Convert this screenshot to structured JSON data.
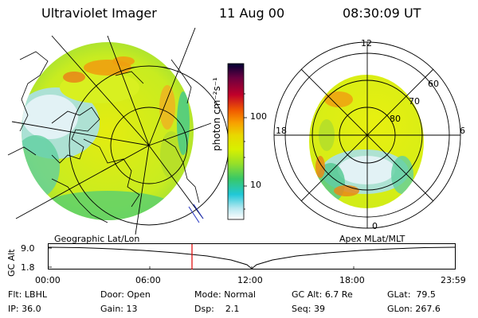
{
  "header": {
    "instrument": "Ultraviolet Imager",
    "date": "11 Aug 00",
    "time": "08:30:09 UT"
  },
  "colorbar": {
    "unit_label": "photon cm⁻²s⁻¹",
    "ticks": [
      "100",
      "10"
    ],
    "colors": [
      "#000033",
      "#6a0040",
      "#c0002a",
      "#f05a00",
      "#f8a000",
      "#e8d800",
      "#d8f000",
      "#98e028",
      "#38c868",
      "#20c8d8",
      "#b8e8f0",
      "#ffffff"
    ]
  },
  "left_map": {
    "label": "Geographic Lat/Lon"
  },
  "right_map": {
    "label": "Apex  MLat/MLT",
    "mlt_labels": {
      "top": "12",
      "left": "18",
      "right": "6",
      "bottom": "0"
    },
    "lat_labels": [
      "60",
      "70",
      "80"
    ]
  },
  "altitude_panel": {
    "ylabel": "GC Alt",
    "yticks": [
      "9.0",
      "1.8"
    ],
    "xticks": [
      "00:00",
      "06:00",
      "12:00",
      "18:00",
      "23:59"
    ],
    "marker_time": "08:30",
    "marker_color": "#e00000"
  },
  "status": {
    "row1": [
      {
        "key": "Flt:",
        "value": "LBHL"
      },
      {
        "key": "Door:",
        "value": "Open"
      },
      {
        "key": "Mode:",
        "value": "Normal"
      },
      {
        "key": "GC Alt:",
        "value": "6.7 Re"
      },
      {
        "key": "GLat:",
        "value": "79.5"
      }
    ],
    "row2": [
      {
        "key": "IP:",
        "value": "36.0"
      },
      {
        "key": "Gain:",
        "value": "13"
      },
      {
        "key": "Dsp:",
        "value": "2.1"
      },
      {
        "key": "Seq:",
        "value": "39"
      },
      {
        "key": "GLon:",
        "value": "267.6"
      }
    ]
  }
}
